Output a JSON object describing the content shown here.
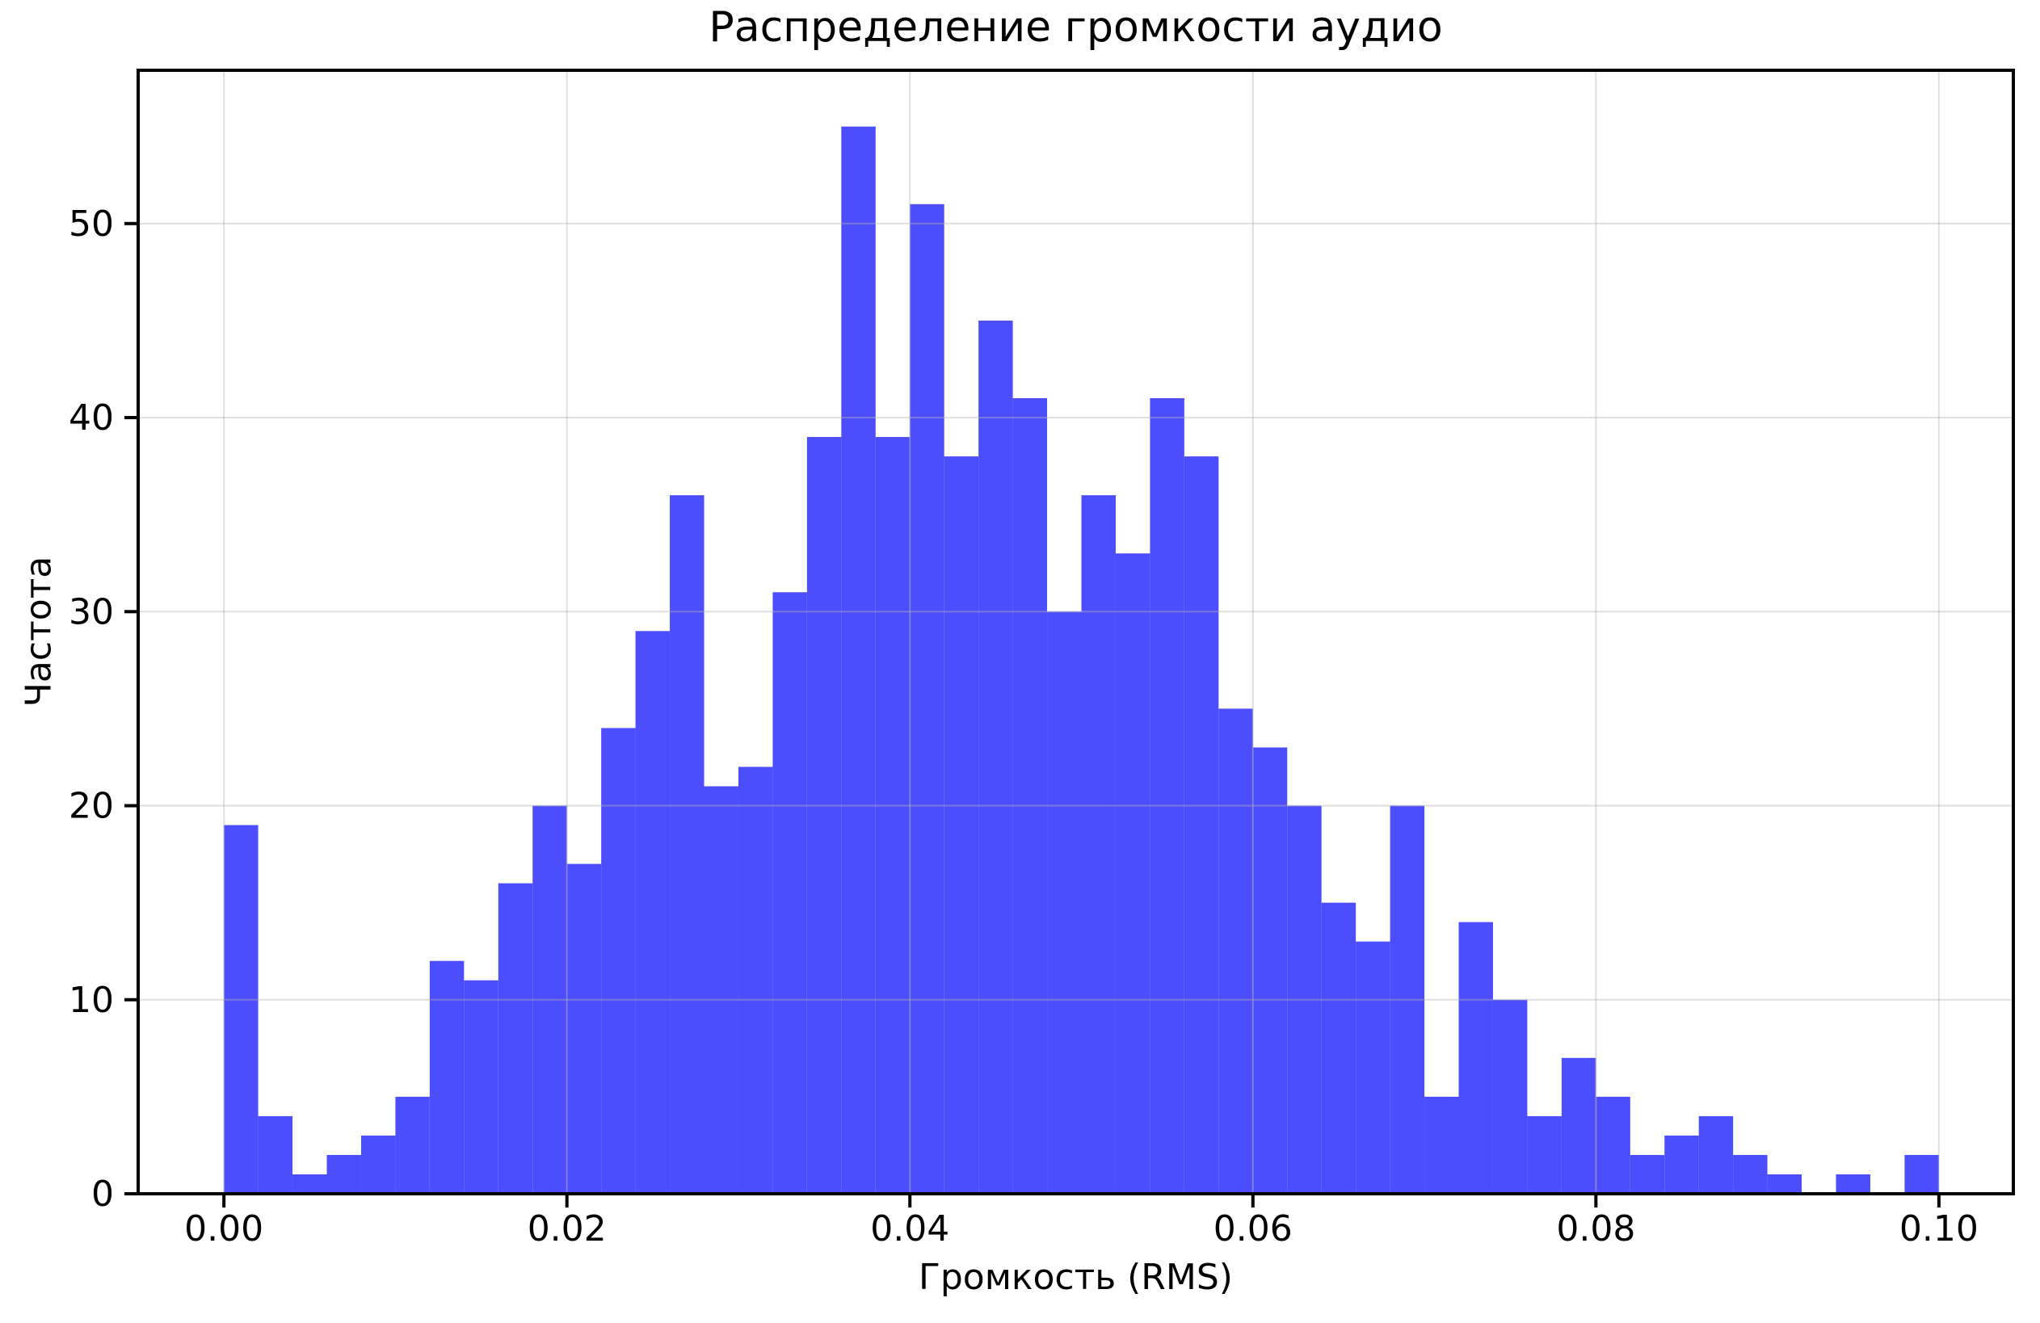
{
  "chart_data": {
    "type": "bar",
    "subtype": "histogram",
    "title": "Распределение громкости аудио",
    "xlabel": "Громкость (RMS)",
    "ylabel": "Частота",
    "bin_start": 0.0,
    "bin_width": 0.002,
    "values": [
      19,
      4,
      1,
      2,
      3,
      5,
      12,
      11,
      16,
      20,
      17,
      24,
      29,
      36,
      21,
      22,
      31,
      39,
      55,
      39,
      51,
      38,
      45,
      41,
      30,
      36,
      33,
      41,
      38,
      25,
      23,
      20,
      15,
      13,
      20,
      5,
      14,
      10,
      4,
      7,
      5,
      2,
      3,
      4,
      2,
      1,
      0,
      1,
      0,
      2
    ],
    "x_ticks": [
      0.0,
      0.02,
      0.04,
      0.06,
      0.08,
      0.1
    ],
    "x_tick_labels": [
      "0.00",
      "0.02",
      "0.04",
      "0.06",
      "0.08",
      "0.10"
    ],
    "y_ticks": [
      0,
      10,
      20,
      30,
      40,
      50
    ],
    "y_tick_labels": [
      "0",
      "10",
      "20",
      "30",
      "40",
      "50"
    ],
    "xlim": [
      -0.005,
      0.10434
    ],
    "ylim": [
      0,
      57.9
    ],
    "grid": true,
    "legend": "none",
    "bar_color": "#4C4DFC",
    "grid_color": "#b2b2b2",
    "grid_alpha": 0.42,
    "spine_color": "#000000",
    "text_color": "#000000",
    "background_color": "#ffffff"
  }
}
